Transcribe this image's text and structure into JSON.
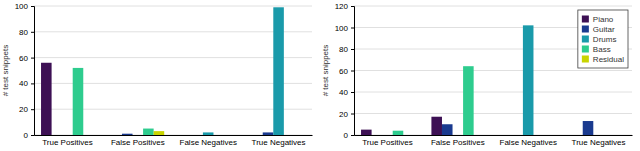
{
  "chart_data": [
    {
      "type": "bar",
      "categories": [
        "True Positives",
        "False Positives",
        "False Negatives",
        "True Negatives"
      ],
      "series": [
        {
          "name": "Piano",
          "color": "#3d1054",
          "values": [
            56,
            0,
            0,
            0
          ]
        },
        {
          "name": "Guitar",
          "color": "#1a3a8f",
          "values": [
            0,
            1,
            0,
            2
          ]
        },
        {
          "name": "Drums",
          "color": "#1a9aaa",
          "values": [
            0,
            0,
            2,
            99
          ]
        },
        {
          "name": "Bass",
          "color": "#2ecc8e",
          "values": [
            52,
            5,
            0,
            0
          ]
        },
        {
          "name": "Residual",
          "color": "#c8d400",
          "values": [
            0,
            3,
            0,
            0
          ]
        }
      ],
      "y_label": "# test snippets",
      "ylim": [
        0,
        100
      ],
      "yticks": [
        0,
        20,
        40,
        60,
        80,
        100
      ],
      "grid": true
    },
    {
      "type": "bar",
      "categories": [
        "True Positives",
        "False Positives",
        "False Negatives",
        "True Negatives"
      ],
      "series": [
        {
          "name": "Piano",
          "color": "#3d1054",
          "values": [
            5,
            17,
            0,
            0
          ]
        },
        {
          "name": "Guitar",
          "color": "#1a3a8f",
          "values": [
            0,
            10,
            0,
            13
          ]
        },
        {
          "name": "Drums",
          "color": "#1a9aaa",
          "values": [
            0,
            0,
            102,
            0
          ]
        },
        {
          "name": "Bass",
          "color": "#2ecc8e",
          "values": [
            4,
            64,
            0,
            0
          ]
        },
        {
          "name": "Residual",
          "color": "#c8d400",
          "values": [
            0,
            0,
            0,
            0
          ]
        }
      ],
      "y_label": "# test snippets",
      "ylim": [
        0,
        120
      ],
      "yticks": [
        0,
        20,
        40,
        60,
        80,
        100,
        120
      ],
      "grid": true,
      "legend": "upper right"
    }
  ]
}
